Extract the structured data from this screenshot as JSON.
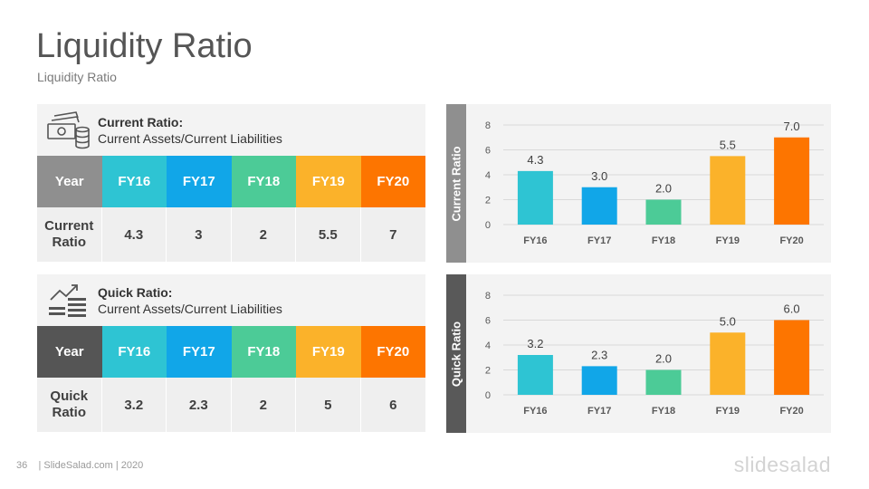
{
  "slide": {
    "title": "Liquidity Ratio",
    "subtitle": "Liquidity Ratio",
    "page_number": "36",
    "footer": "| SlideSalad.com | 2020",
    "logo": "slidesalad"
  },
  "colors": {
    "fy16": "#2ec4d3",
    "fy17": "#11a6e8",
    "fy18": "#4ccb97",
    "fy19": "#fbb22a",
    "fy20": "#fd7500",
    "header_year_top": "#8f8f8f",
    "header_year_bottom": "#555555",
    "sidebar_top": "#8f8f8f",
    "sidebar_bottom": "#595959"
  },
  "current_table": {
    "icon": "cash-coins-icon",
    "label_bold": "Current Ratio:",
    "label_formula": "Current Assets/Current Liabilities",
    "header": [
      "Year",
      "FY16",
      "FY17",
      "FY18",
      "FY19",
      "FY20"
    ],
    "row_label_line1": "Current",
    "row_label_line2": "Ratio",
    "values": [
      "4.3",
      "3",
      "2",
      "5.5",
      "7"
    ]
  },
  "quick_table": {
    "icon": "growth-chart-icon",
    "label_bold": "Quick Ratio:",
    "label_formula": "Current Assets/Current Liabilities",
    "header": [
      "Year",
      "FY16",
      "FY17",
      "FY18",
      "FY19",
      "FY20"
    ],
    "row_label_line1": "Quick",
    "row_label_line2": "Ratio",
    "values": [
      "3.2",
      "2.3",
      "2",
      "5",
      "6"
    ]
  },
  "chart_data": [
    {
      "type": "bar",
      "ylabel": "Current Ratio",
      "categories": [
        "FY16",
        "FY17",
        "FY18",
        "FY19",
        "FY20"
      ],
      "values": [
        4.3,
        3.0,
        2.0,
        5.5,
        7.0
      ],
      "value_labels": [
        "4.3",
        "3.0",
        "2.0",
        "5.5",
        "7.0"
      ],
      "ylim": [
        0,
        8
      ],
      "yticks": [
        "0",
        "2",
        "4",
        "6",
        "8"
      ],
      "grid": true
    },
    {
      "type": "bar",
      "ylabel": "Quick Ratio",
      "categories": [
        "FY16",
        "FY17",
        "FY18",
        "FY19",
        "FY20"
      ],
      "values": [
        3.2,
        2.3,
        2.0,
        5.0,
        6.0
      ],
      "value_labels": [
        "3.2",
        "2.3",
        "2.0",
        "5.0",
        "6.0"
      ],
      "ylim": [
        0,
        8
      ],
      "yticks": [
        "0",
        "2",
        "4",
        "6",
        "8"
      ],
      "grid": true
    }
  ]
}
